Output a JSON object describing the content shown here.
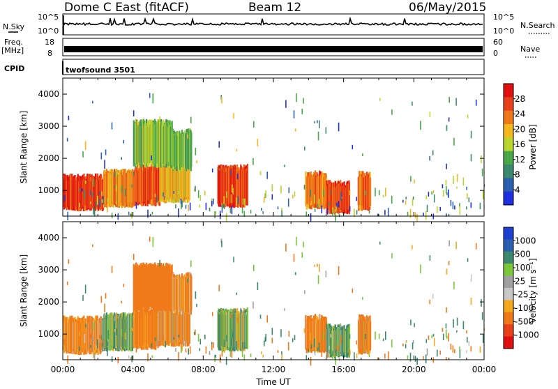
{
  "header": {
    "station": "Dome C East (fitACF)",
    "beam": "Beam 12",
    "date": "06/May/2015"
  },
  "status_panels": {
    "nsky_label": "N.Sky",
    "nsearch_label": "N.Search",
    "freq_label_1": "Freq.",
    "freq_label_2": "[MHz]",
    "nave_label": "Nave",
    "cpid_label": "CPID",
    "cpid_value": "twofsound 3501",
    "nsky_ticks": [
      "10^5",
      "10^0"
    ],
    "nsearch_ticks": [
      "10^5",
      "10^0"
    ],
    "freq_ticks": [
      "18",
      "8"
    ],
    "nave_ticks": [
      "60",
      "0"
    ]
  },
  "colors": {
    "power_scale": [
      "#1f2fe0",
      "#2d5fb0",
      "#3c8a6e",
      "#48a84a",
      "#b8d62e",
      "#f3b81e",
      "#f07a1a",
      "#e8401a",
      "#e01010"
    ],
    "velocity_scale": [
      "#e01010",
      "#e8401a",
      "#f07a1a",
      "#f3a81e",
      "#c8c8c8",
      "#a0a0a0",
      "#7ac83a",
      "#3c8a6e",
      "#2d5fb0",
      "#1f3fd0"
    ]
  },
  "chart_data": [
    {
      "type": "heatmap",
      "panel": "power",
      "xlabel": "",
      "ylabel": "Slant Range [km]",
      "colorbar_label": "Power [dB]",
      "colorbar_ticks": [
        "28",
        "24",
        "20",
        "16",
        "12",
        "8",
        "4"
      ],
      "colorbar_range": [
        0,
        32
      ],
      "yticks": [
        "4000",
        "3000",
        "2000",
        "1000"
      ],
      "ylim": [
        200,
        4500
      ],
      "xlim_hours": [
        0,
        24
      ],
      "echo_regions": [
        {
          "t0": 0.0,
          "t1": 2.3,
          "r0": 450,
          "r1": 1400,
          "power": 28
        },
        {
          "t0": 2.3,
          "t1": 4.1,
          "r0": 550,
          "r1": 1550,
          "power": 22
        },
        {
          "t0": 4.1,
          "t1": 5.5,
          "r0": 600,
          "r1": 1700,
          "power": 26
        },
        {
          "t0": 5.5,
          "t1": 7.2,
          "r0": 700,
          "r1": 1800,
          "power": 20
        },
        {
          "t0": 8.8,
          "t1": 10.5,
          "r0": 550,
          "r1": 1700,
          "power": 27
        },
        {
          "t0": 13.8,
          "t1": 15.0,
          "r0": 500,
          "r1": 1500,
          "power": 24
        },
        {
          "t0": 15.0,
          "t1": 16.3,
          "r0": 350,
          "r1": 1200,
          "power": 26
        },
        {
          "t0": 16.8,
          "t1": 17.5,
          "r0": 450,
          "r1": 1500,
          "power": 25
        },
        {
          "t0": 4.0,
          "t1": 6.2,
          "r0": 1800,
          "r1": 3100,
          "power": 14
        },
        {
          "t0": 6.2,
          "t1": 7.3,
          "r0": 1700,
          "r1": 2800,
          "power": 12
        }
      ]
    },
    {
      "type": "heatmap",
      "panel": "velocity",
      "xlabel": "Time UT",
      "ylabel": "Slant Range [km]",
      "colorbar_label": "Velocity [m s⁻¹]",
      "colorbar_ticks": [
        "1000",
        "500",
        "100",
        "25",
        "-25",
        "-100",
        "-500",
        "-1000"
      ],
      "yticks": [
        "4000",
        "3000",
        "2000",
        "1000"
      ],
      "ylim": [
        200,
        4500
      ],
      "xticks": [
        "00:00",
        "04:00",
        "08:00",
        "12:00",
        "16:00",
        "20:00",
        "00:00"
      ],
      "xlim_hours": [
        0,
        24
      ],
      "echo_regions": [
        {
          "t0": 0.0,
          "t1": 2.2,
          "r0": 450,
          "r1": 1450,
          "velocity": -150
        },
        {
          "t0": 2.2,
          "t1": 4.0,
          "r0": 550,
          "r1": 1550,
          "velocity": 80
        },
        {
          "t0": 4.0,
          "t1": 5.4,
          "r0": 600,
          "r1": 1700,
          "velocity": -200
        },
        {
          "t0": 5.4,
          "t1": 7.2,
          "r0": 700,
          "r1": 1800,
          "velocity": -120
        },
        {
          "t0": 8.8,
          "t1": 10.5,
          "r0": 550,
          "r1": 1700,
          "velocity": 60
        },
        {
          "t0": 13.8,
          "t1": 15.0,
          "r0": 500,
          "r1": 1500,
          "velocity": -150
        },
        {
          "t0": 15.0,
          "t1": 16.3,
          "r0": 350,
          "r1": 1200,
          "velocity": 90
        },
        {
          "t0": 16.8,
          "t1": 17.5,
          "r0": 450,
          "r1": 1500,
          "velocity": -120
        },
        {
          "t0": 4.0,
          "t1": 6.2,
          "r0": 1800,
          "r1": 3100,
          "velocity": -300
        },
        {
          "t0": 6.2,
          "t1": 7.3,
          "r0": 1700,
          "r1": 2800,
          "velocity": -150
        }
      ]
    }
  ]
}
